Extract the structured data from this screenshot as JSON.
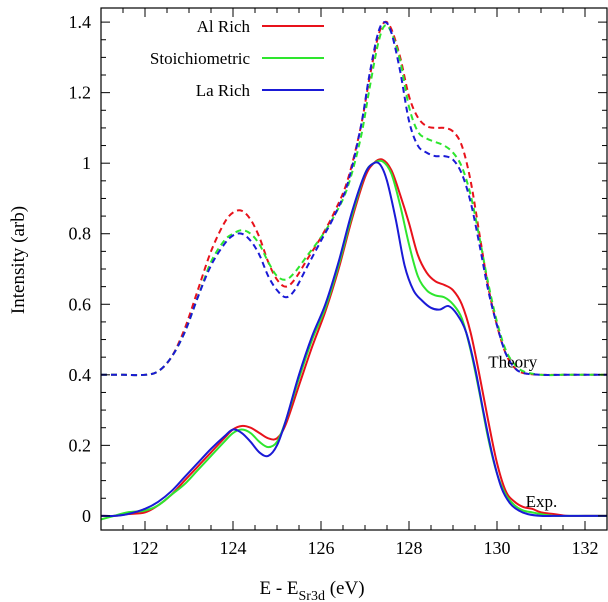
{
  "chart_data": {
    "type": "line",
    "title": "",
    "xlabel": {
      "main": "E - E",
      "sub": "Sr3d",
      "unit": " (eV)"
    },
    "ylabel": "Intensity (arb)",
    "xlim": [
      121,
      132.5
    ],
    "ylim": [
      -0.04,
      1.44
    ],
    "x_ticks": [
      122,
      124,
      126,
      128,
      130,
      132
    ],
    "y_ticks": [
      0,
      0.2,
      0.4,
      0.6,
      0.8,
      1,
      1.2,
      1.4
    ],
    "x_tick_labels": [
      "122",
      "124",
      "126",
      "128",
      "130",
      "132"
    ],
    "y_tick_labels": [
      "0",
      "0.2",
      "0.4",
      "0.6",
      "0.8",
      "1",
      "1.2",
      "1.4"
    ],
    "grid": false,
    "legend_position": "top-left",
    "colors": {
      "al_rich": "#e8121b",
      "stoichiometric": "#2ee62e",
      "la_rich": "#1a1ad6"
    },
    "annotations": [
      {
        "text": "Theory",
        "x": 129.8,
        "y": 0.435
      },
      {
        "text": "Exp.",
        "x": 130.65,
        "y": 0.04
      }
    ],
    "series": [
      {
        "name": "Al Rich",
        "kind": "theory",
        "style": "dashed",
        "color": "#e8121b",
        "x": [
          121,
          121.5,
          122,
          122.3,
          122.6,
          122.9,
          123.2,
          123.5,
          123.8,
          124.0,
          124.2,
          124.4,
          124.6,
          124.8,
          125.0,
          125.2,
          125.4,
          125.7,
          126.0,
          126.3,
          126.6,
          126.9,
          127.1,
          127.3,
          127.45,
          127.6,
          127.8,
          128.0,
          128.2,
          128.4,
          128.6,
          128.8,
          129.0,
          129.2,
          129.4,
          129.6,
          129.8,
          130.0,
          130.2,
          130.4,
          130.6,
          131.0,
          131.5,
          132,
          132.5
        ],
        "y": [
          0.4,
          0.4,
          0.4,
          0.41,
          0.45,
          0.53,
          0.64,
          0.75,
          0.83,
          0.86,
          0.865,
          0.84,
          0.79,
          0.72,
          0.67,
          0.65,
          0.67,
          0.73,
          0.79,
          0.86,
          0.95,
          1.1,
          1.24,
          1.36,
          1.4,
          1.38,
          1.3,
          1.19,
          1.13,
          1.105,
          1.1,
          1.1,
          1.09,
          1.05,
          0.95,
          0.8,
          0.65,
          0.54,
          0.46,
          0.42,
          0.405,
          0.4,
          0.4,
          0.4,
          0.4
        ]
      },
      {
        "name": "Stoichiometric",
        "kind": "theory",
        "style": "dashed",
        "color": "#2ee62e",
        "x": [
          121,
          121.5,
          122,
          122.3,
          122.6,
          122.9,
          123.2,
          123.5,
          123.8,
          124.0,
          124.2,
          124.4,
          124.6,
          124.8,
          125.0,
          125.2,
          125.4,
          125.7,
          126.0,
          126.3,
          126.6,
          126.9,
          127.1,
          127.3,
          127.45,
          127.6,
          127.8,
          128.0,
          128.2,
          128.4,
          128.6,
          128.8,
          129.0,
          129.2,
          129.4,
          129.6,
          129.8,
          130.0,
          130.2,
          130.4,
          130.6,
          131.0,
          131.5,
          132,
          132.5
        ],
        "y": [
          0.4,
          0.4,
          0.4,
          0.41,
          0.45,
          0.52,
          0.62,
          0.72,
          0.78,
          0.8,
          0.81,
          0.8,
          0.77,
          0.72,
          0.68,
          0.67,
          0.69,
          0.74,
          0.79,
          0.85,
          0.93,
          1.07,
          1.21,
          1.34,
          1.39,
          1.37,
          1.29,
          1.16,
          1.09,
          1.07,
          1.06,
          1.05,
          1.03,
          0.99,
          0.91,
          0.79,
          0.66,
          0.55,
          0.47,
          0.43,
          0.41,
          0.4,
          0.4,
          0.4,
          0.4
        ]
      },
      {
        "name": "La Rich",
        "kind": "theory",
        "style": "dashed",
        "color": "#1a1ad6",
        "x": [
          121,
          121.5,
          122,
          122.3,
          122.6,
          122.9,
          123.2,
          123.5,
          123.8,
          124.0,
          124.2,
          124.4,
          124.6,
          124.8,
          125.0,
          125.2,
          125.4,
          125.7,
          126.0,
          126.3,
          126.6,
          126.9,
          127.1,
          127.3,
          127.45,
          127.6,
          127.8,
          128.0,
          128.2,
          128.4,
          128.6,
          128.8,
          129.0,
          129.2,
          129.4,
          129.6,
          129.8,
          130.0,
          130.2,
          130.4,
          130.6,
          131.0,
          131.5,
          132,
          132.5
        ],
        "y": [
          0.4,
          0.4,
          0.4,
          0.41,
          0.45,
          0.52,
          0.62,
          0.71,
          0.77,
          0.795,
          0.8,
          0.78,
          0.74,
          0.68,
          0.64,
          0.62,
          0.64,
          0.71,
          0.78,
          0.85,
          0.94,
          1.1,
          1.25,
          1.37,
          1.4,
          1.37,
          1.26,
          1.12,
          1.05,
          1.03,
          1.02,
          1.02,
          1.01,
          0.97,
          0.89,
          0.77,
          0.64,
          0.54,
          0.46,
          0.42,
          0.405,
          0.4,
          0.4,
          0.4,
          0.4
        ]
      },
      {
        "name": "Al Rich",
        "kind": "experiment",
        "style": "solid",
        "color": "#e8121b",
        "x": [
          121,
          121.3,
          121.6,
          122.0,
          122.3,
          122.6,
          122.9,
          123.2,
          123.5,
          123.8,
          124.0,
          124.2,
          124.4,
          124.6,
          124.8,
          125.0,
          125.2,
          125.5,
          125.8,
          126.1,
          126.4,
          126.7,
          127.0,
          127.2,
          127.4,
          127.6,
          127.8,
          128.0,
          128.2,
          128.4,
          128.6,
          128.8,
          129.0,
          129.2,
          129.4,
          129.6,
          129.8,
          130.0,
          130.2,
          130.4,
          130.6,
          130.8,
          131.0,
          131.3,
          131.6,
          132.0,
          132.5
        ],
        "y": [
          0.0,
          0.0,
          0.005,
          0.01,
          0.03,
          0.06,
          0.1,
          0.14,
          0.18,
          0.22,
          0.245,
          0.255,
          0.25,
          0.235,
          0.22,
          0.22,
          0.26,
          0.37,
          0.48,
          0.58,
          0.7,
          0.84,
          0.96,
          1.0,
          1.01,
          0.98,
          0.91,
          0.83,
          0.74,
          0.69,
          0.665,
          0.655,
          0.64,
          0.6,
          0.52,
          0.4,
          0.27,
          0.15,
          0.07,
          0.04,
          0.025,
          0.02,
          0.01,
          0.005,
          0.0,
          0.0,
          0.0
        ]
      },
      {
        "name": "Stoichiometric",
        "kind": "experiment",
        "style": "solid",
        "color": "#2ee62e",
        "x": [
          121,
          121.3,
          121.6,
          122.0,
          122.3,
          122.6,
          122.9,
          123.2,
          123.5,
          123.8,
          124.0,
          124.2,
          124.4,
          124.6,
          124.8,
          125.0,
          125.2,
          125.5,
          125.8,
          126.1,
          126.4,
          126.7,
          127.0,
          127.2,
          127.4,
          127.6,
          127.8,
          128.0,
          128.2,
          128.4,
          128.6,
          128.8,
          129.0,
          129.2,
          129.4,
          129.6,
          129.8,
          130.0,
          130.2,
          130.4,
          130.6,
          130.8,
          131.0,
          131.3,
          131.6,
          132.0,
          132.5
        ],
        "y": [
          -0.01,
          0.0,
          0.01,
          0.015,
          0.03,
          0.06,
          0.09,
          0.13,
          0.17,
          0.21,
          0.235,
          0.245,
          0.235,
          0.21,
          0.195,
          0.21,
          0.27,
          0.39,
          0.5,
          0.59,
          0.71,
          0.85,
          0.97,
          1.0,
          1.005,
          0.97,
          0.88,
          0.77,
          0.68,
          0.64,
          0.625,
          0.62,
          0.6,
          0.56,
          0.47,
          0.35,
          0.22,
          0.12,
          0.06,
          0.03,
          0.015,
          0.01,
          0.005,
          0.0,
          0.0,
          0.0,
          0.0
        ]
      },
      {
        "name": "La Rich",
        "kind": "experiment",
        "style": "solid",
        "color": "#1a1ad6",
        "x": [
          121,
          121.3,
          121.6,
          122.0,
          122.3,
          122.6,
          122.9,
          123.2,
          123.5,
          123.8,
          124.0,
          124.2,
          124.4,
          124.6,
          124.8,
          125.0,
          125.2,
          125.5,
          125.8,
          126.1,
          126.4,
          126.7,
          127.0,
          127.2,
          127.35,
          127.5,
          127.7,
          127.9,
          128.1,
          128.3,
          128.5,
          128.7,
          128.9,
          129.1,
          129.3,
          129.5,
          129.7,
          129.9,
          130.1,
          130.3,
          130.5,
          130.7,
          131.0,
          131.3,
          131.6,
          132.0,
          132.5
        ],
        "y": [
          0.0,
          0.0,
          0.005,
          0.02,
          0.04,
          0.07,
          0.11,
          0.15,
          0.19,
          0.225,
          0.245,
          0.235,
          0.21,
          0.18,
          0.17,
          0.2,
          0.27,
          0.4,
          0.51,
          0.6,
          0.72,
          0.86,
          0.97,
          1.0,
          0.995,
          0.95,
          0.84,
          0.71,
          0.64,
          0.61,
          0.59,
          0.585,
          0.595,
          0.57,
          0.52,
          0.42,
          0.29,
          0.17,
          0.08,
          0.035,
          0.015,
          0.005,
          0.0,
          0.0,
          0.0,
          0.0,
          0.0
        ]
      }
    ]
  }
}
